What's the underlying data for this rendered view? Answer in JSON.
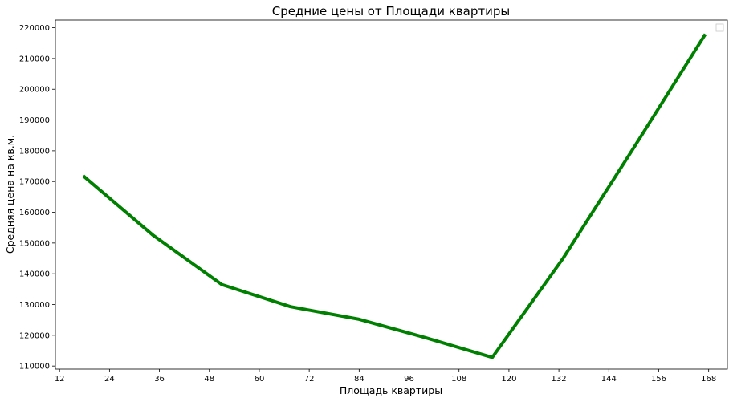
{
  "chart_data": {
    "type": "line",
    "title": "Средние цены от Площади квартиры",
    "xlabel": "Площадь квартиры",
    "ylabel": "Средняя цена на кв.м.",
    "x_ticks": [
      12,
      24,
      36,
      48,
      60,
      72,
      84,
      96,
      108,
      120,
      132,
      144,
      156,
      168
    ],
    "y_ticks": [
      110000,
      120000,
      130000,
      140000,
      150000,
      160000,
      170000,
      180000,
      190000,
      200000,
      210000,
      220000
    ],
    "xlim": [
      11,
      172.5
    ],
    "ylim": [
      109000,
      222500
    ],
    "grid": false,
    "legend": "top-right (empty)",
    "series": [
      {
        "color": "#008000",
        "x": [
          18,
          34.5,
          51,
          67.5,
          84,
          100,
          116,
          133,
          150,
          167
        ],
        "y": [
          171500,
          152500,
          136500,
          129300,
          125200,
          119200,
          112800,
          145000,
          181000,
          217500
        ]
      }
    ]
  }
}
